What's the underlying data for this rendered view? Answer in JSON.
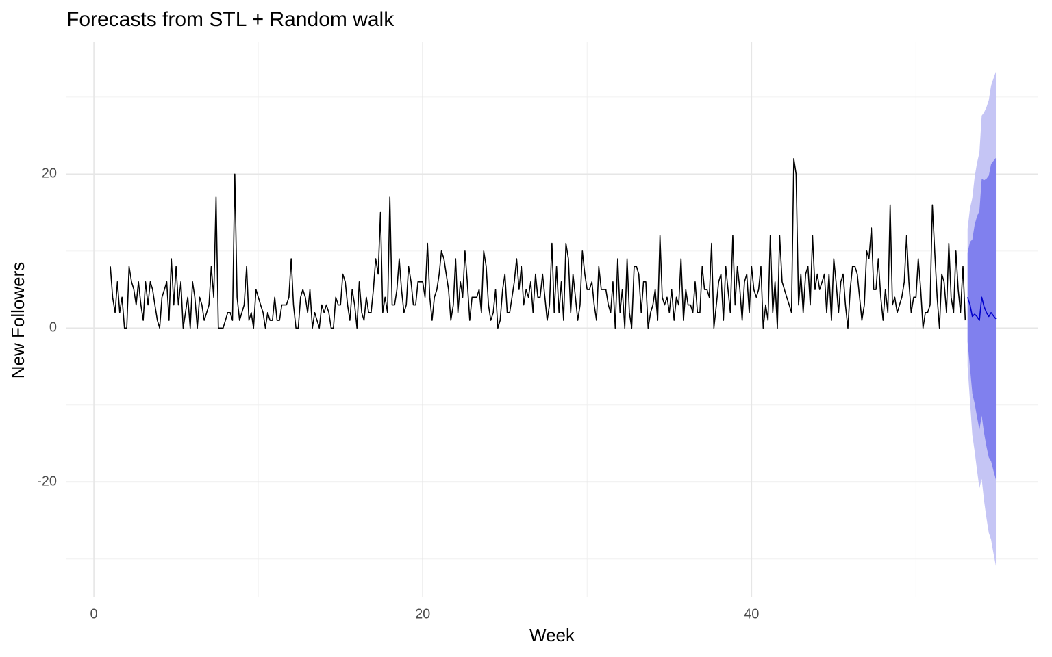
{
  "chart_data": {
    "type": "line",
    "title": "Forecasts from STL +  Random walk",
    "xlabel": "Week",
    "ylabel": "New Followers",
    "xlim": [
      -1.67,
      57.4
    ],
    "ylim": [
      -35,
      37.1
    ],
    "xticks": [
      0,
      20,
      40
    ],
    "yticks": [
      -20,
      0,
      20
    ],
    "x_minor_grid": [
      10,
      30,
      50
    ],
    "y_minor_grid": [
      -30,
      -10,
      10,
      30
    ],
    "grid": true,
    "series": [
      {
        "color": "#000000",
        "x": [
          1,
          1.14,
          1.29,
          1.43,
          1.57,
          1.71,
          1.86,
          2,
          2.14,
          2.29,
          2.43,
          2.57,
          2.71,
          2.86,
          3,
          3.14,
          3.29,
          3.43,
          3.57,
          3.71,
          3.86,
          4,
          4.14,
          4.29,
          4.43,
          4.57,
          4.71,
          4.86,
          5,
          5.14,
          5.29,
          5.43,
          5.57,
          5.71,
          5.86,
          6,
          6.14,
          6.29,
          6.43,
          6.57,
          6.71,
          6.86,
          7,
          7.14,
          7.29,
          7.43,
          7.57,
          7.71,
          7.86,
          8,
          8.14,
          8.29,
          8.43,
          8.57,
          8.71,
          8.86,
          9,
          9.14,
          9.29,
          9.43,
          9.57,
          9.71,
          9.86,
          10,
          10.14,
          10.29,
          10.43,
          10.57,
          10.71,
          10.86,
          11,
          11.14,
          11.29,
          11.43,
          11.57,
          11.71,
          11.86,
          12,
          12.14,
          12.29,
          12.43,
          12.57,
          12.71,
          12.86,
          13,
          13.14,
          13.29,
          13.43,
          13.57,
          13.71,
          13.86,
          14,
          14.14,
          14.29,
          14.43,
          14.57,
          14.71,
          14.86,
          15,
          15.14,
          15.29,
          15.43,
          15.57,
          15.71,
          15.86,
          16,
          16.14,
          16.29,
          16.43,
          16.57,
          16.71,
          16.86,
          17,
          17.14,
          17.29,
          17.43,
          17.57,
          17.71,
          17.86,
          18,
          18.14,
          18.29,
          18.43,
          18.57,
          18.71,
          18.86,
          19,
          19.14,
          19.29,
          19.43,
          19.57,
          19.71,
          19.86,
          20,
          20.14,
          20.29,
          20.43,
          20.57,
          20.71,
          20.86,
          21,
          21.14,
          21.29,
          21.43,
          21.57,
          21.71,
          21.86,
          22,
          22.14,
          22.29,
          22.43,
          22.57,
          22.71,
          22.86,
          23,
          23.14,
          23.29,
          23.43,
          23.57,
          23.71,
          23.86,
          24,
          24.14,
          24.29,
          24.43,
          24.57,
          24.71,
          24.86,
          25,
          25.14,
          25.29,
          25.43,
          25.57,
          25.71,
          25.86,
          26,
          26.14,
          26.29,
          26.43,
          26.57,
          26.71,
          26.86,
          27,
          27.14,
          27.29,
          27.43,
          27.57,
          27.71,
          27.86,
          28,
          28.14,
          28.29,
          28.43,
          28.57,
          28.71,
          28.86,
          29,
          29.14,
          29.29,
          29.43,
          29.57,
          29.71,
          29.86,
          30,
          30.14,
          30.29,
          30.43,
          30.57,
          30.71,
          30.86,
          31,
          31.14,
          31.29,
          31.43,
          31.57,
          31.71,
          31.86,
          32,
          32.14,
          32.29,
          32.43,
          32.57,
          32.71,
          32.86,
          33,
          33.14,
          33.29,
          33.43,
          33.57,
          33.71,
          33.86,
          34,
          34.14,
          34.29,
          34.43,
          34.57,
          34.71,
          34.86,
          35,
          35.14,
          35.29,
          35.43,
          35.57,
          35.71,
          35.86,
          36,
          36.14,
          36.29,
          36.43,
          36.57,
          36.71,
          36.86,
          37,
          37.14,
          37.29,
          37.43,
          37.57,
          37.71,
          37.86,
          38,
          38.14,
          38.29,
          38.43,
          38.57,
          38.71,
          38.86,
          39,
          39.14,
          39.29,
          39.43,
          39.57,
          39.71,
          39.86,
          40,
          40.14,
          40.29,
          40.43,
          40.57,
          40.71,
          40.86,
          41,
          41.14,
          41.29,
          41.43,
          41.57,
          41.71,
          41.86,
          42,
          42.14,
          42.29,
          42.43,
          42.57,
          42.71,
          42.86,
          43,
          43.14,
          43.29,
          43.43,
          43.57,
          43.71,
          43.86,
          44,
          44.14,
          44.29,
          44.43,
          44.57,
          44.71,
          44.86,
          45,
          45.14,
          45.29,
          45.43,
          45.57,
          45.71,
          45.86,
          46,
          46.14,
          46.29,
          46.43,
          46.57,
          46.71,
          46.86,
          47,
          47.14,
          47.29,
          47.43,
          47.57,
          47.71,
          47.86,
          48,
          48.14,
          48.29,
          48.43,
          48.57,
          48.71,
          48.86,
          49,
          49.14,
          49.29,
          49.43,
          49.57,
          49.71,
          49.86,
          50,
          50.14,
          50.29,
          50.43,
          50.57,
          50.71,
          50.86,
          51,
          51.14,
          51.29,
          51.43,
          51.57,
          51.71,
          51.86,
          52,
          52.14,
          52.29,
          52.43,
          52.57,
          52.71,
          52.86,
          53
        ],
        "values": [
          8,
          4,
          2,
          6,
          2,
          4,
          0,
          0,
          8,
          6,
          5,
          3,
          6,
          3,
          1,
          6,
          3,
          6,
          5,
          3,
          1,
          0,
          4,
          5,
          6,
          1,
          9,
          3,
          8,
          3,
          6,
          0,
          2,
          4,
          0,
          6,
          4,
          0,
          4,
          3,
          1,
          2,
          3,
          8,
          4,
          17,
          0,
          0,
          0,
          1,
          2,
          2,
          1,
          20,
          4,
          1,
          2,
          3,
          8,
          1,
          2,
          0,
          5,
          4,
          3,
          2,
          0,
          2,
          1,
          1,
          4,
          1,
          1,
          3,
          3,
          3,
          4,
          9,
          3,
          0,
          0,
          4,
          5,
          4,
          2,
          5,
          0,
          2,
          1,
          0,
          3,
          2,
          3,
          2,
          0,
          0,
          4,
          3,
          3,
          7,
          6,
          3,
          1,
          5,
          3,
          0,
          6,
          2,
          1,
          4,
          2,
          2,
          5,
          9,
          7,
          15,
          2,
          4,
          2,
          17,
          3,
          3,
          5,
          9,
          5,
          2,
          3,
          8,
          6,
          3,
          3,
          6,
          6,
          6,
          4,
          11,
          4,
          1,
          4,
          5,
          7,
          10,
          9,
          7,
          5,
          1,
          3,
          9,
          2,
          6,
          4,
          10,
          6,
          1,
          4,
          4,
          4,
          5,
          2,
          10,
          8,
          3,
          1,
          2,
          5,
          0,
          1,
          5,
          7,
          2,
          2,
          4,
          6,
          9,
          5,
          8,
          3,
          5,
          4,
          6,
          2,
          7,
          4,
          4,
          7,
          4,
          1,
          3,
          11,
          2,
          8,
          2,
          6,
          1,
          11,
          9,
          2,
          7,
          4,
          1,
          3,
          10,
          7,
          5,
          5,
          6,
          3,
          1,
          8,
          5,
          5,
          5,
          3,
          2,
          6,
          0,
          9,
          2,
          5,
          0,
          9,
          2,
          0,
          8,
          8,
          7,
          2,
          6,
          6,
          0,
          2,
          3,
          5,
          1,
          12,
          4,
          3,
          4,
          2,
          5,
          1,
          4,
          3,
          9,
          1,
          5,
          3,
          3,
          2,
          6,
          2,
          2,
          8,
          5,
          5,
          4,
          11,
          0,
          3,
          6,
          7,
          1,
          8,
          5,
          2,
          12,
          3,
          8,
          5,
          1,
          6,
          7,
          2,
          8,
          5,
          4,
          5,
          8,
          0,
          3,
          1,
          12,
          2,
          6,
          0,
          12,
          6,
          5,
          4,
          3,
          2,
          22,
          20,
          3,
          7,
          2,
          7,
          8,
          3,
          12,
          5,
          7,
          5,
          6,
          7,
          2,
          7,
          1,
          9,
          6,
          2,
          6,
          7,
          3,
          0,
          5,
          8,
          8,
          7,
          4,
          1,
          3,
          10,
          9,
          13,
          5,
          5,
          9,
          4,
          1,
          5,
          2,
          16,
          3,
          4,
          2,
          3,
          4,
          6,
          12,
          6,
          2,
          4,
          4,
          9,
          5,
          0,
          2,
          2,
          3,
          16,
          10,
          4,
          0,
          7,
          6,
          2,
          11,
          4,
          2,
          10,
          5,
          2,
          8,
          1
        ]
      },
      {
        "color": "#0000cc",
        "x": [
          53.14,
          53.29,
          53.43,
          53.57,
          53.71,
          53.86,
          54,
          54.14,
          54.29,
          54.43,
          54.57,
          54.71,
          54.86
        ],
        "values": [
          4,
          3,
          1.5,
          1.8,
          1.5,
          1,
          4,
          2.8,
          2,
          1.5,
          2,
          1.6,
          1.2
        ]
      }
    ],
    "bands": [
      {
        "color": "#c5c5f5",
        "x": [
          53.14,
          53.29,
          53.43,
          53.57,
          53.71,
          53.86,
          54,
          54.14,
          54.29,
          54.43,
          54.57,
          54.71,
          54.86
        ],
        "lower": [
          -4.9,
          -9.6,
          -13.9,
          -16,
          -18.4,
          -20.8,
          -19.6,
          -22.4,
          -24.7,
          -26.6,
          -27.5,
          -29.2,
          -30.9
        ],
        "upper": [
          12.9,
          15.6,
          16.9,
          19.6,
          21.4,
          22.8,
          27.6,
          28,
          28.7,
          29.6,
          31.5,
          32.4,
          33.3
        ]
      },
      {
        "color": "#8080ee",
        "x": [
          53.14,
          53.29,
          53.43,
          53.57,
          53.71,
          53.86,
          54,
          54.14,
          54.29,
          54.43,
          54.57,
          54.71,
          54.86
        ],
        "lower": [
          -1.8,
          -5.2,
          -8.5,
          -9.8,
          -11.5,
          -13.2,
          -11.4,
          -13.6,
          -15.4,
          -16.8,
          -17.3,
          -18.5,
          -19.7
        ],
        "upper": [
          9.8,
          11.2,
          11.5,
          13.4,
          14.5,
          15.2,
          19.4,
          19.2,
          19.4,
          19.8,
          21.3,
          21.7,
          22.1
        ]
      }
    ]
  }
}
